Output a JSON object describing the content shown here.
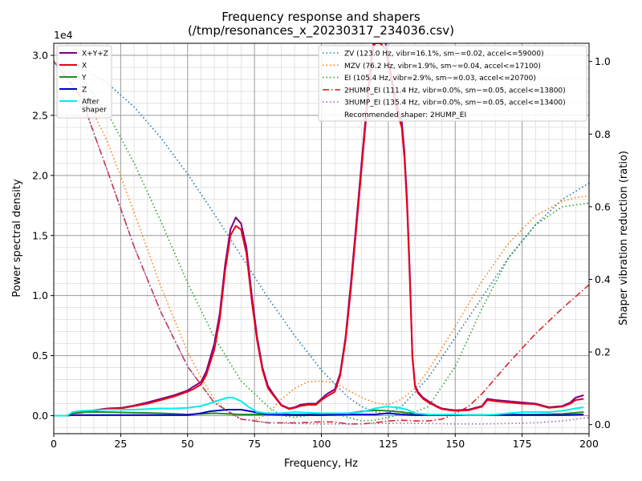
{
  "chart_data": {
    "type": "line",
    "title": "Frequency response and shapers",
    "subtitle": "(/tmp/resonances_x_20230317_234036.csv)",
    "xlabel": "Frequency, Hz",
    "ylabel": "Power spectral density",
    "y2label": "Shaper vibration reduction (ratio)",
    "y_offset_label": "1e4",
    "xlim": [
      0,
      200
    ],
    "ylim": [
      -0.15,
      3.1
    ],
    "y2lim": [
      -0.025,
      1.05
    ],
    "x_ticks": [
      "0",
      "25",
      "50",
      "75",
      "100",
      "125",
      "150",
      "175",
      "200"
    ],
    "y_ticks": [
      "0.0",
      "0.5",
      "1.0",
      "1.5",
      "2.0",
      "2.5",
      "3.0"
    ],
    "y2_ticks": [
      "0.0",
      "0.2",
      "0.4",
      "0.6",
      "0.8",
      "1.0"
    ],
    "grid": true,
    "psd_series": [
      {
        "name": "X+Y+Z",
        "color": "#800080",
        "x": [
          0,
          5,
          7,
          10,
          15,
          20,
          25,
          30,
          35,
          40,
          45,
          50,
          52,
          55,
          57,
          60,
          62,
          64,
          66,
          68,
          70,
          72,
          74,
          76,
          78,
          80,
          82,
          85,
          88,
          90,
          92,
          95,
          98,
          100,
          102,
          105,
          107,
          109,
          111,
          113,
          115,
          117,
          119,
          120,
          122,
          124,
          126,
          128,
          130,
          131,
          132,
          133,
          134,
          135,
          136,
          138,
          140,
          143,
          145,
          148,
          150,
          155,
          160,
          162,
          165,
          170,
          175,
          180,
          185,
          190,
          193,
          195,
          198
        ],
        "y": [
          0,
          0,
          0.025,
          0.03,
          0.045,
          0.06,
          0.065,
          0.085,
          0.11,
          0.14,
          0.17,
          0.21,
          0.24,
          0.28,
          0.37,
          0.6,
          0.85,
          1.25,
          1.55,
          1.65,
          1.6,
          1.4,
          1.0,
          0.65,
          0.4,
          0.25,
          0.18,
          0.09,
          0.06,
          0.07,
          0.09,
          0.1,
          0.1,
          0.14,
          0.18,
          0.22,
          0.35,
          0.65,
          1.1,
          1.6,
          2.1,
          2.6,
          3.05,
          3.15,
          3.15,
          3.1,
          2.85,
          2.6,
          2.45,
          2.2,
          1.8,
          1.2,
          0.5,
          0.25,
          0.2,
          0.15,
          0.12,
          0.08,
          0.06,
          0.05,
          0.045,
          0.05,
          0.08,
          0.14,
          0.13,
          0.12,
          0.11,
          0.1,
          0.07,
          0.08,
          0.11,
          0.15,
          0.17
        ]
      },
      {
        "name": "X",
        "color": "#e8001b",
        "x": [
          0,
          5,
          7,
          10,
          15,
          20,
          25,
          30,
          35,
          40,
          45,
          50,
          52,
          55,
          57,
          60,
          62,
          64,
          66,
          68,
          70,
          72,
          74,
          76,
          78,
          80,
          82,
          85,
          88,
          90,
          92,
          95,
          98,
          100,
          102,
          105,
          107,
          109,
          111,
          113,
          115,
          117,
          119,
          120,
          122,
          124,
          126,
          128,
          130,
          131,
          132,
          133,
          134,
          135,
          136,
          138,
          140,
          143,
          145,
          148,
          150,
          155,
          160,
          162,
          165,
          170,
          175,
          180,
          185,
          190,
          193,
          195,
          198
        ],
        "y": [
          0,
          0,
          0.02,
          0.025,
          0.04,
          0.055,
          0.06,
          0.08,
          0.1,
          0.13,
          0.16,
          0.2,
          0.22,
          0.26,
          0.34,
          0.55,
          0.8,
          1.2,
          1.5,
          1.58,
          1.55,
          1.35,
          0.95,
          0.62,
          0.38,
          0.23,
          0.17,
          0.085,
          0.055,
          0.065,
          0.08,
          0.09,
          0.09,
          0.13,
          0.16,
          0.2,
          0.33,
          0.62,
          1.05,
          1.55,
          2.05,
          2.55,
          3.0,
          3.1,
          3.1,
          3.05,
          2.8,
          2.55,
          2.4,
          2.15,
          1.75,
          1.15,
          0.48,
          0.24,
          0.19,
          0.14,
          0.11,
          0.075,
          0.055,
          0.045,
          0.04,
          0.045,
          0.075,
          0.13,
          0.12,
          0.11,
          0.1,
          0.095,
          0.065,
          0.075,
          0.1,
          0.13,
          0.14
        ]
      },
      {
        "name": "Y",
        "color": "#228b22",
        "x": [
          0,
          5,
          7,
          10,
          20,
          30,
          40,
          50,
          55,
          60,
          65,
          70,
          75,
          80,
          90,
          100,
          110,
          115,
          120,
          125,
          130,
          135,
          140,
          150,
          160,
          170,
          180,
          190,
          198
        ],
        "y": [
          0,
          0,
          0.025,
          0.03,
          0.03,
          0.025,
          0.02,
          0.01,
          0.015,
          0.02,
          0.015,
          0.01,
          0.01,
          0.01,
          0.01,
          0.01,
          0.02,
          0.035,
          0.045,
          0.04,
          0.03,
          0.015,
          0.01,
          0.005,
          0.005,
          0.01,
          0.01,
          0.015,
          0.03
        ]
      },
      {
        "name": "Z",
        "color": "#0000cd",
        "x": [
          0,
          5,
          7,
          10,
          20,
          30,
          40,
          50,
          55,
          58,
          60,
          65,
          70,
          75,
          80,
          90,
          100,
          110,
          120,
          125,
          130,
          135,
          140,
          150,
          160,
          170,
          180,
          190,
          198
        ],
        "y": [
          0,
          0,
          0.005,
          0.005,
          0.005,
          0.005,
          0.005,
          0.005,
          0.02,
          0.035,
          0.04,
          0.05,
          0.05,
          0.03,
          0.01,
          0.005,
          0.005,
          0.01,
          0.01,
          0.02,
          0.01,
          0.005,
          0.005,
          0.005,
          0.005,
          0.005,
          0.005,
          0.005,
          0.01
        ]
      },
      {
        "name": "After\nshaper",
        "color": "#00eeee",
        "x": [
          0,
          5,
          7,
          10,
          20,
          30,
          40,
          45,
          50,
          55,
          58,
          62,
          65,
          67,
          70,
          73,
          76,
          80,
          85,
          90,
          95,
          100,
          105,
          110,
          115,
          120,
          124,
          128,
          132,
          135,
          140,
          145,
          150,
          155,
          160,
          165,
          170,
          175,
          180,
          185,
          190,
          195,
          198
        ],
        "y": [
          0,
          0,
          0.03,
          0.04,
          0.05,
          0.05,
          0.06,
          0.06,
          0.065,
          0.08,
          0.1,
          0.13,
          0.15,
          0.15,
          0.12,
          0.07,
          0.03,
          0.02,
          0.02,
          0.03,
          0.025,
          0.02,
          0.02,
          0.02,
          0.03,
          0.06,
          0.075,
          0.07,
          0.05,
          0.02,
          0.01,
          0.01,
          0.01,
          0.005,
          0.005,
          0.01,
          0.02,
          0.03,
          0.03,
          0.03,
          0.04,
          0.06,
          0.07
        ]
      }
    ],
    "shaper_series": [
      {
        "name": "ZV (123.0 Hz, vibr=16.1%, sm~=0.02, accel<=59000)",
        "color": "#1f77b4",
        "dash": "dotted",
        "x": [
          0,
          10,
          20,
          30,
          40,
          50,
          60,
          70,
          80,
          90,
          100,
          110,
          115,
          120,
          123,
          126,
          130,
          140,
          150,
          160,
          170,
          180,
          190,
          200
        ],
        "y": [
          1.0,
          0.985,
          0.94,
          0.875,
          0.79,
          0.69,
          0.58,
          0.465,
          0.35,
          0.245,
          0.15,
          0.075,
          0.05,
          0.035,
          0.03,
          0.035,
          0.05,
          0.13,
          0.24,
          0.35,
          0.46,
          0.55,
          0.62,
          0.665
        ]
      },
      {
        "name": "MZV (76.2 Hz, vibr=1.9%, sm~=0.04, accel<=17100)",
        "color": "#ff7f0e",
        "dash": "dotted",
        "x": [
          0,
          10,
          20,
          30,
          40,
          50,
          55,
          60,
          65,
          70,
          75,
          80,
          85,
          90,
          95,
          100,
          105,
          110,
          115,
          120,
          125,
          130,
          135,
          140,
          150,
          160,
          170,
          180,
          190,
          195,
          200
        ],
        "y": [
          1.0,
          0.93,
          0.78,
          0.585,
          0.38,
          0.2,
          0.13,
          0.07,
          0.035,
          0.015,
          0.012,
          0.03,
          0.07,
          0.1,
          0.118,
          0.12,
          0.115,
          0.095,
          0.075,
          0.06,
          0.055,
          0.07,
          0.1,
          0.15,
          0.27,
          0.395,
          0.5,
          0.575,
          0.615,
          0.625,
          0.63
        ]
      },
      {
        "name": "EI (105.4 Hz, vibr=2.9%, sm~=0.03, accel<=20700)",
        "color": "#2ca02c",
        "dash": "dotted",
        "x": [
          0,
          10,
          20,
          30,
          40,
          50,
          60,
          70,
          80,
          85,
          90,
          95,
          100,
          105,
          110,
          115,
          120,
          125,
          130,
          135,
          140,
          150,
          160,
          170,
          180,
          190,
          200
        ],
        "y": [
          1.0,
          0.955,
          0.86,
          0.72,
          0.56,
          0.39,
          0.24,
          0.12,
          0.05,
          0.025,
          0.02,
          0.025,
          0.03,
          0.03,
          0.02,
          0.01,
          0.012,
          0.02,
          0.03,
          0.035,
          0.05,
          0.16,
          0.32,
          0.46,
          0.55,
          0.6,
          0.61
        ]
      },
      {
        "name": "2HUMP_EI (111.4 Hz, vibr=0.0%, sm~=0.05, accel<=13800)",
        "color": "#d62728",
        "dash": "dashdot",
        "x": [
          0,
          10,
          20,
          30,
          40,
          50,
          60,
          70,
          75,
          80,
          85,
          90,
          95,
          100,
          105,
          110,
          115,
          120,
          125,
          130,
          135,
          140,
          145,
          150,
          155,
          160,
          170,
          180,
          190,
          200
        ],
        "y": [
          1.0,
          0.905,
          0.7,
          0.49,
          0.31,
          0.16,
          0.06,
          0.015,
          0.01,
          0.005,
          0.005,
          0.005,
          0.006,
          0.008,
          0.007,
          0.002,
          0.002,
          0.005,
          0.01,
          0.012,
          0.01,
          0.01,
          0.015,
          0.03,
          0.05,
          0.085,
          0.17,
          0.25,
          0.32,
          0.385
        ]
      },
      {
        "name": "3HUMP_EI (135.4 Hz, vibr=0.0%, sm~=0.05, accel<=13400)",
        "color": "#9467bd",
        "dash": "dotted",
        "x": [
          0,
          10,
          20,
          30,
          40,
          50,
          60,
          70,
          75,
          80,
          90,
          100,
          110,
          120,
          130,
          140,
          150,
          160,
          170,
          180,
          190,
          200
        ],
        "y": [
          1.0,
          0.905,
          0.7,
          0.49,
          0.31,
          0.16,
          0.06,
          0.015,
          0.01,
          0.005,
          0.003,
          0.002,
          0.002,
          0.003,
          0.004,
          0.003,
          0.002,
          0.002,
          0.003,
          0.005,
          0.01,
          0.02
        ]
      }
    ],
    "recommended": "Recommended shaper: 2HUMP_EI"
  }
}
